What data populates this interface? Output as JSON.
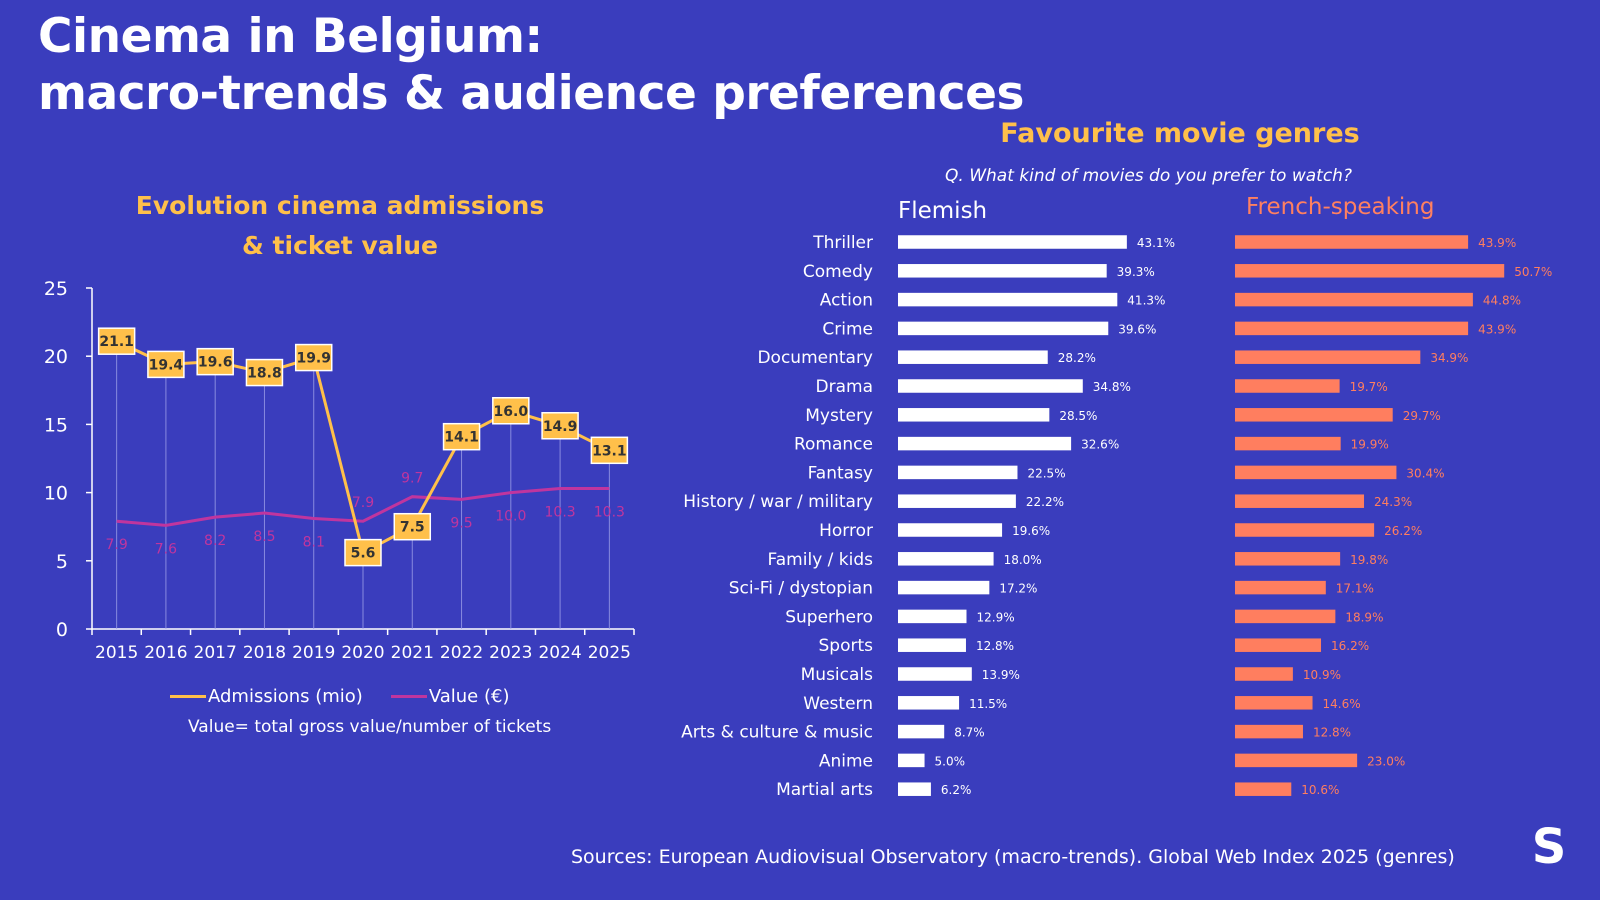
{
  "title": {
    "line1": "Cinema in Belgium:",
    "line2": "macro-trends & audience preferences"
  },
  "left_chart": {
    "title_line1": "Evolution cinema admissions",
    "title_line2": "& ticket value",
    "legend_admissions": "Admissions (mio)",
    "legend_value": "Value (€)",
    "note": "Value= total gross value/number of tickets"
  },
  "right_chart": {
    "title": "Favourite movie genres",
    "question": "Q.  What kind of movies do you prefer to watch?",
    "flemish_label": "Flemish",
    "french_label": "French-speaking"
  },
  "sources": "Sources: European Audiovisual Observatory (macro-trends). Global Web Index 2025 (genres)",
  "logo_letter": "S",
  "colors": {
    "background": "#3a3dbd",
    "admissions": "#ffc04a",
    "value": "#c0359e",
    "flemish": "#ffffff",
    "french": "#ff7e5f"
  },
  "chart_data": [
    {
      "type": "line",
      "title": "Evolution cinema admissions & ticket value",
      "x": [
        "2015",
        "2016",
        "2017",
        "2018",
        "2019",
        "2020",
        "2021",
        "2022",
        "2023",
        "2024",
        "2025"
      ],
      "ylim": [
        0,
        25
      ],
      "yticks": [
        "0",
        "5",
        "10",
        "15",
        "20",
        "25"
      ],
      "series": [
        {
          "name": "Admissions (mio)",
          "values": [
            21.1,
            19.4,
            19.6,
            18.8,
            19.9,
            5.6,
            7.5,
            14.1,
            16.0,
            14.9,
            13.1
          ],
          "labels": [
            "21.1",
            "19.4",
            "19.6",
            "18.8",
            "19.9",
            "5.6",
            "7.5",
            "14.1",
            "16.0",
            "14.9",
            "13.1"
          ]
        },
        {
          "name": "Value (€)",
          "values": [
            7.9,
            7.6,
            8.2,
            8.5,
            8.1,
            7.9,
            9.7,
            9.5,
            10.0,
            10.3,
            10.3
          ],
          "labels": [
            "7.9",
            "7.6",
            "8.2",
            "8.5",
            "8.1",
            "7.9",
            "9.7",
            "9.5",
            "10.0",
            "10.3",
            "10.3"
          ]
        }
      ]
    },
    {
      "type": "bar",
      "title": "Favourite movie genres",
      "categories": [
        "Thriller",
        "Comedy",
        "Action",
        "Crime",
        "Documentary",
        "Drama",
        "Mystery",
        "Romance",
        "Fantasy",
        "History / war / military",
        "Horror",
        "Family / kids",
        "Sci-Fi / dystopian",
        "Superhero",
        "Sports",
        "Musicals",
        "Western",
        "Arts & culture & music",
        "Anime",
        "Martial arts"
      ],
      "series": [
        {
          "name": "Flemish",
          "values": [
            43.1,
            39.3,
            41.3,
            39.6,
            28.2,
            34.8,
            28.5,
            32.6,
            22.5,
            22.2,
            19.6,
            18.0,
            17.2,
            12.9,
            12.8,
            13.9,
            11.5,
            8.7,
            5.0,
            6.2
          ],
          "labels": [
            "43.1%",
            "39.3%",
            "41.3%",
            "39.6%",
            "28.2%",
            "34.8%",
            "28.5%",
            "32.6%",
            "22.5%",
            "22.2%",
            "19.6%",
            "18.0%",
            "17.2%",
            "12.9%",
            "12.8%",
            "13.9%",
            "11.5%",
            "8.7%",
            "5.0%",
            "6.2%"
          ]
        },
        {
          "name": "French-speaking",
          "values": [
            43.9,
            50.7,
            44.8,
            43.9,
            34.9,
            19.7,
            29.7,
            19.9,
            30.4,
            24.3,
            26.2,
            19.8,
            17.1,
            18.9,
            16.2,
            10.9,
            14.6,
            12.8,
            23.0,
            10.6
          ],
          "labels": [
            "43.9%",
            "50.7%",
            "44.8%",
            "43.9%",
            "34.9%",
            "19.7%",
            "29.7%",
            "19.9%",
            "30.4%",
            "24.3%",
            "26.2%",
            "19.8%",
            "17.1%",
            "18.9%",
            "16.2%",
            "10.9%",
            "14.6%",
            "12.8%",
            "23.0%",
            "10.6%"
          ]
        }
      ]
    }
  ]
}
